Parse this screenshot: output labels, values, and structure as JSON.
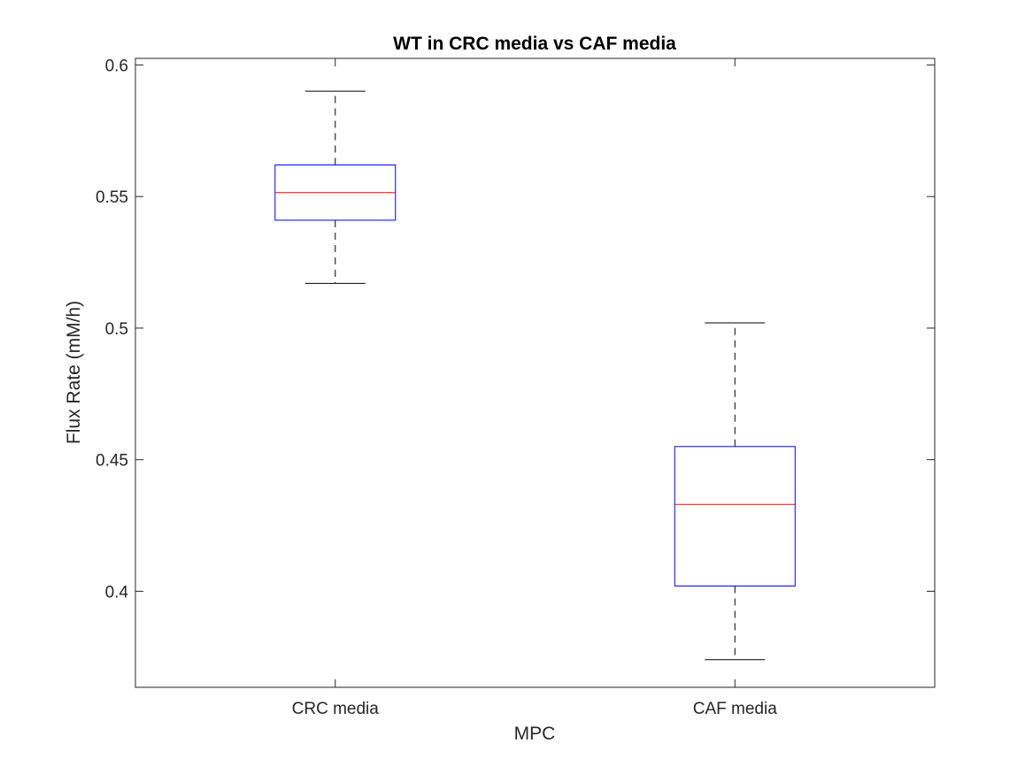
{
  "colors": {
    "box": "#0000ff",
    "median": "#ff0000",
    "whisker": "#000000",
    "axis": "#262626"
  },
  "chart_data": {
    "type": "box",
    "title": "WT in CRC media vs CAF media",
    "xlabel": "MPC",
    "ylabel": "Flux Rate (mM/h)",
    "ylim": [
      0.3635,
      0.6025
    ],
    "yticks": [
      0.4,
      0.45,
      0.5,
      0.55,
      0.6
    ],
    "ytick_labels": [
      "0.4",
      "0.45",
      "0.5",
      "0.55",
      "0.6"
    ],
    "grid": false,
    "categories": [
      "CRC media",
      "CAF media"
    ],
    "boxes": [
      {
        "name": "CRC media",
        "whisker_low": 0.517,
        "q1": 0.541,
        "median": 0.5515,
        "q3": 0.562,
        "whisker_high": 0.59
      },
      {
        "name": "CAF media",
        "whisker_low": 0.374,
        "q1": 0.402,
        "median": 0.433,
        "q3": 0.455,
        "whisker_high": 0.502
      }
    ]
  }
}
